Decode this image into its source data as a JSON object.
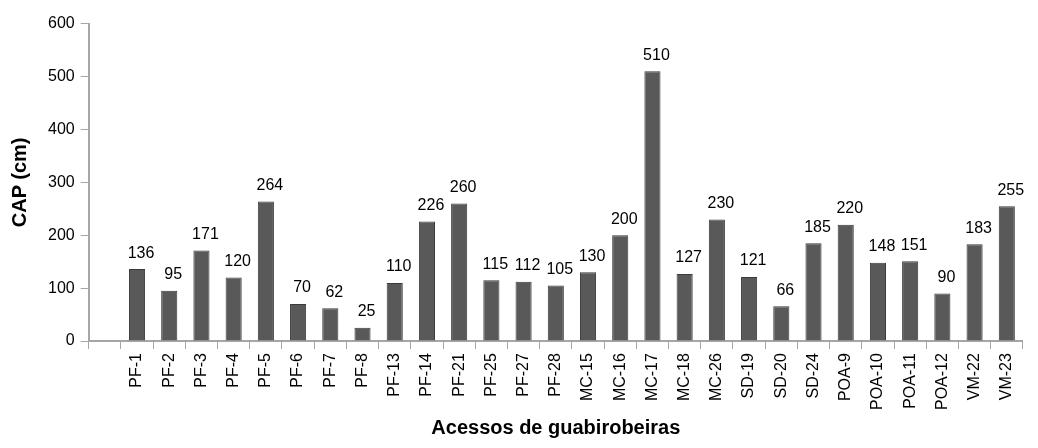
{
  "chart_data": {
    "type": "bar",
    "xlabel": "Acessos de guabirobeiras",
    "ylabel": "CAP (cm)",
    "categories": [
      null,
      "PF-1",
      "PF-2",
      "PF-3",
      "PF-4",
      "PF-5",
      "PF-6",
      "PF-7",
      "PF-8",
      "PF-13",
      "PF-14",
      "PF-21",
      "PF-25",
      "PF-27",
      "PF-28",
      "MC-15",
      "MC-16",
      "MC-17",
      "MC-18",
      "MC-26",
      "SD-19",
      "SD-20",
      "SD-24",
      "POA-9",
      "POA-10",
      "POA-11",
      "POA-12",
      "VM-22",
      "VM-23"
    ],
    "values": [
      null,
      136,
      95,
      171,
      120,
      264,
      70,
      62,
      25,
      110,
      226,
      260,
      115,
      112,
      105,
      130,
      200,
      510,
      127,
      230,
      121,
      66,
      185,
      220,
      148,
      151,
      90,
      183,
      255
    ],
    "color": "#595959",
    "ylim": [
      0,
      600
    ],
    "yticks": [
      0,
      100,
      200,
      300,
      400,
      500,
      600
    ],
    "data_labels": true,
    "legend": false
  }
}
